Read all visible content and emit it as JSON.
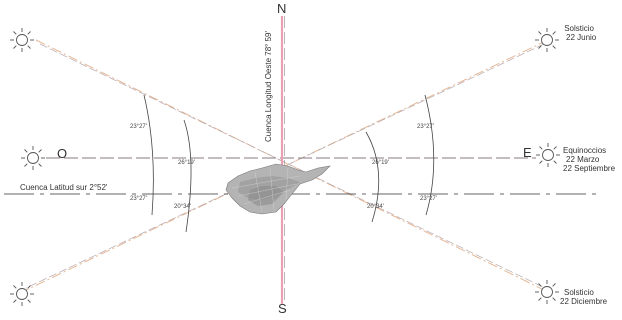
{
  "cardinals": {
    "north": "N",
    "south": "S",
    "east": "E",
    "west": "O"
  },
  "longitude_label": "Cuenca Longitud Oeste 78° 59'",
  "latitude_label": "Cuenca Latitud sur 2°52'",
  "solstice_june": {
    "line1": "Solsticio",
    "line2": "22 Junio"
  },
  "equinox": {
    "line1": "Equinoccios",
    "line2": "22 Marzo",
    "line3": "22 Septiembre"
  },
  "solstice_december": {
    "line1": "Solsticio",
    "line2": "22 Diciembre"
  },
  "angles": {
    "left_upper": "23°27'",
    "left_mid": "26°19'",
    "left_lower": "23°27'",
    "left_inner_lower": "20°34'",
    "right_upper": "23°27'",
    "right_mid": "26°19'",
    "right_lower": "23°27'",
    "right_inner_lower": "20°34'"
  },
  "colors": {
    "ns_axis": "#e8a0b4",
    "sun_ray": "#e6b896",
    "dashed_line": "#8a7a80",
    "sun_icon": "#555555",
    "city": "#9a9a9a"
  },
  "icons": [
    "sun-icon",
    "city-map"
  ]
}
